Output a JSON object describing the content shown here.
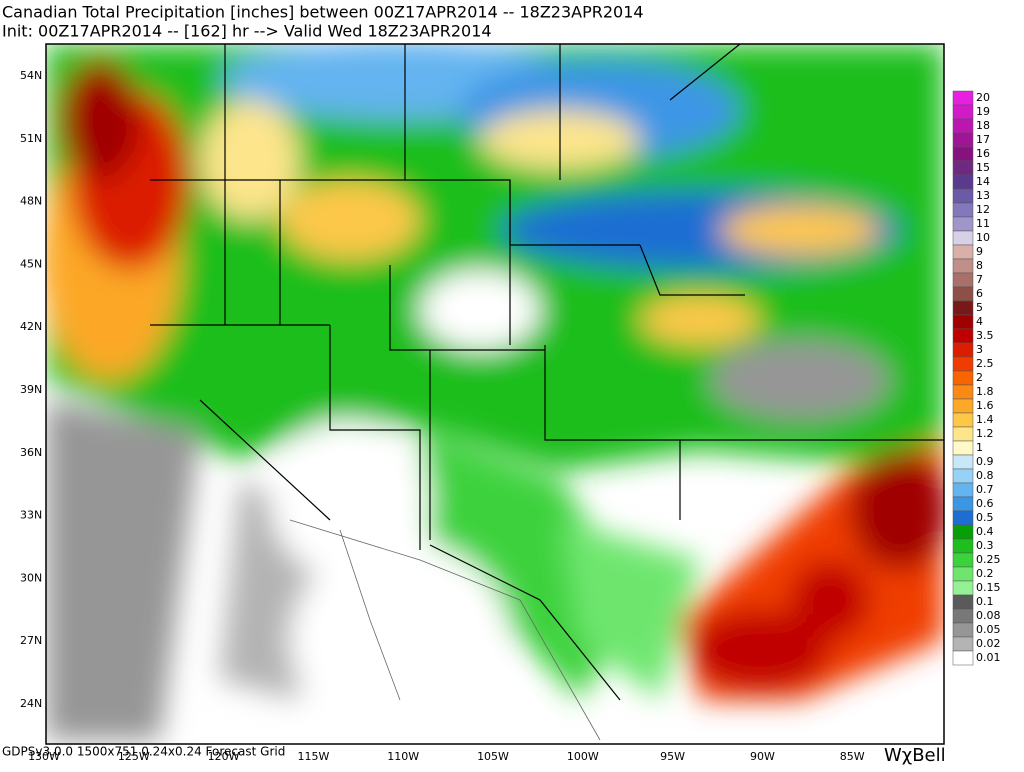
{
  "header": {
    "title": "Canadian Total Precipitation [inches] between 00Z17APR2014 -- 18Z23APR2014",
    "subtitle": "Init: 00Z17APR2014 -- [162] hr --> Valid Wed 18Z23APR2014"
  },
  "latitude_labels": [
    "54N",
    "51N",
    "48N",
    "45N",
    "42N",
    "39N",
    "36N",
    "33N",
    "30N",
    "27N",
    "24N"
  ],
  "longitude_labels": [
    "130W",
    "125W",
    "120W",
    "115W",
    "110W",
    "105W",
    "100W",
    "95W",
    "90W",
    "85W"
  ],
  "colorbar": {
    "levels": [
      {
        "label": "20",
        "color": "#e81ee0"
      },
      {
        "label": "19",
        "color": "#d21ac8"
      },
      {
        "label": "18",
        "color": "#bc16b0"
      },
      {
        "label": "17",
        "color": "#a01496"
      },
      {
        "label": "16",
        "color": "#861280"
      },
      {
        "label": "15",
        "color": "#6e2a80"
      },
      {
        "label": "14",
        "color": "#5a3a8c"
      },
      {
        "label": "13",
        "color": "#6a5aa8"
      },
      {
        "label": "12",
        "color": "#8478bc"
      },
      {
        "label": "11",
        "color": "#a096cc"
      },
      {
        "label": "10",
        "color": "#d8d0e4"
      },
      {
        "label": "9",
        "color": "#d8b0a8"
      },
      {
        "label": "8",
        "color": "#c09088"
      },
      {
        "label": "7",
        "color": "#a87068"
      },
      {
        "label": "6",
        "color": "#8c5048"
      },
      {
        "label": "5",
        "color": "#781818"
      },
      {
        "label": "4",
        "color": "#a00000"
      },
      {
        "label": "3.5",
        "color": "#c00000"
      },
      {
        "label": "3",
        "color": "#dc1e00"
      },
      {
        "label": "2.5",
        "color": "#f03c00"
      },
      {
        "label": "2",
        "color": "#f86400"
      },
      {
        "label": "1.8",
        "color": "#fa8a14"
      },
      {
        "label": "1.6",
        "color": "#fca828"
      },
      {
        "label": "1.4",
        "color": "#fdc848"
      },
      {
        "label": "1.2",
        "color": "#fde58c"
      },
      {
        "label": "1",
        "color": "#fff8c8"
      },
      {
        "label": "0.9",
        "color": "#c8e8fa"
      },
      {
        "label": "0.8",
        "color": "#96d2f8"
      },
      {
        "label": "0.7",
        "color": "#64b4f0"
      },
      {
        "label": "0.6",
        "color": "#3c96e6"
      },
      {
        "label": "0.5",
        "color": "#1e6ed2"
      },
      {
        "label": "0.4",
        "color": "#06a006"
      },
      {
        "label": "0.3",
        "color": "#1ebe1e"
      },
      {
        "label": "0.25",
        "color": "#3cd23c"
      },
      {
        "label": "0.2",
        "color": "#6ee66e"
      },
      {
        "label": "0.15",
        "color": "#96f096"
      },
      {
        "label": "0.1",
        "color": "#5a5a5a"
      },
      {
        "label": "0.08",
        "color": "#787878"
      },
      {
        "label": "0.05",
        "color": "#969696"
      },
      {
        "label": "0.02",
        "color": "#b4b4b4"
      },
      {
        "label": "0.01",
        "color": "#ffffff"
      }
    ]
  },
  "footer": {
    "grid_info": "GDPSv3.0.0 1500x751 0.24x0.24 Forecast Grid",
    "logo": "WχBell"
  }
}
